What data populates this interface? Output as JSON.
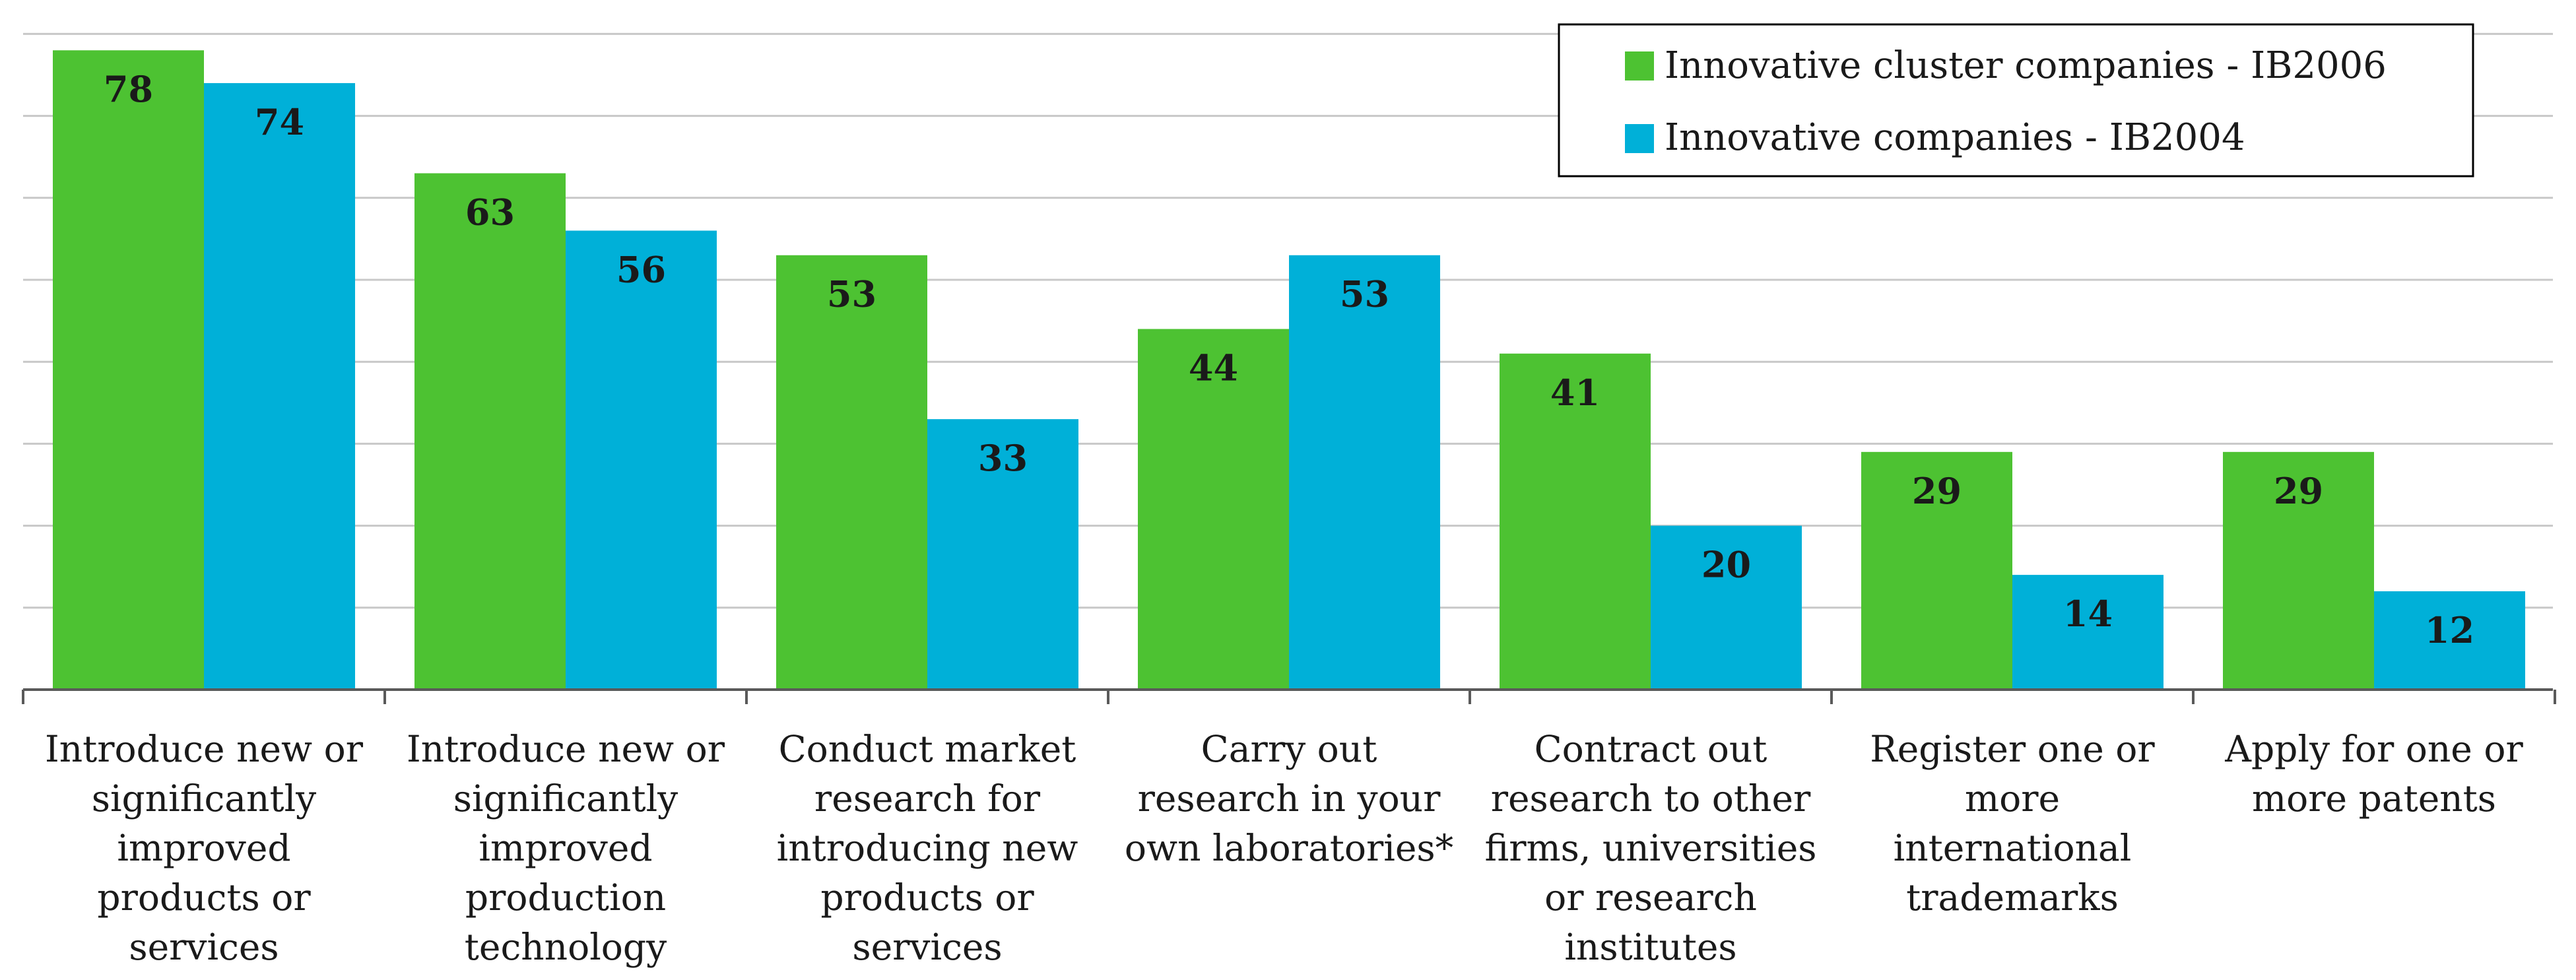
{
  "chart_data": {
    "type": "bar",
    "title": "",
    "xlabel": "",
    "ylabel": "",
    "ylim": [
      0,
      80
    ],
    "grid": true,
    "legend_position": "top-right",
    "categories": [
      [
        "Introduce new or",
        "significantly",
        "improved",
        "products or",
        "services"
      ],
      [
        "Introduce new or",
        "significantly",
        "improved",
        "production",
        "technology"
      ],
      [
        "Conduct market",
        "research for",
        "introducing new",
        "products or",
        "services"
      ],
      [
        "Carry out",
        "research in your",
        "own laboratories*"
      ],
      [
        "Contract out",
        "research to other",
        "firms, universities",
        "or research",
        "institutes"
      ],
      [
        "Register one or",
        "more",
        "international",
        "trademarks"
      ],
      [
        "Apply for one or",
        "more patents"
      ]
    ],
    "series": [
      {
        "name": "Innovative cluster companies - IB2006",
        "color": "#4dc232",
        "values": [
          78,
          63,
          53,
          44,
          41,
          29,
          29
        ]
      },
      {
        "name": "Innovative companies - IB2004",
        "color": "#00b0d8",
        "values": [
          74,
          56,
          33,
          53,
          20,
          14,
          12
        ]
      }
    ]
  }
}
